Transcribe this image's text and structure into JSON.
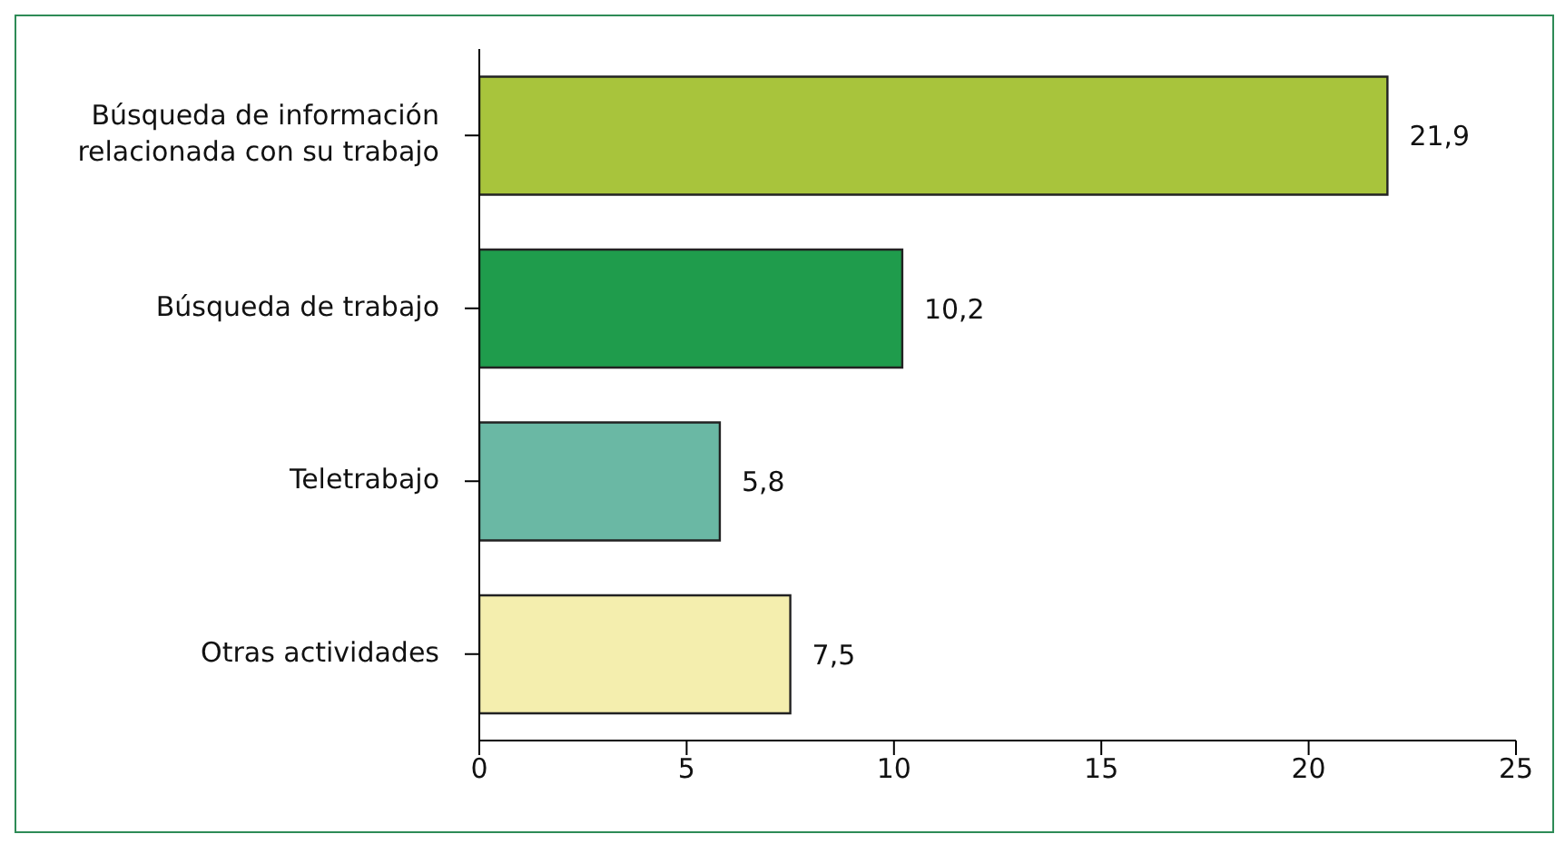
{
  "chart_data": {
    "type": "bar",
    "orientation": "horizontal",
    "categories": [
      "Búsqueda de información relacionada con su trabajo",
      "Búsqueda de trabajo",
      "Teletrabajo",
      "Otras actividades"
    ],
    "values": [
      21.9,
      10.2,
      5.8,
      7.5
    ],
    "colors": [
      "#a8c43c",
      "#1f9c4c",
      "#6ab8a4",
      "#f4eeae"
    ],
    "value_labels": [
      "21,9",
      "10,2",
      "5,8",
      "7,5"
    ],
    "xlim": [
      0,
      25
    ],
    "xticks": [
      0,
      5,
      10,
      15,
      20,
      25
    ]
  }
}
